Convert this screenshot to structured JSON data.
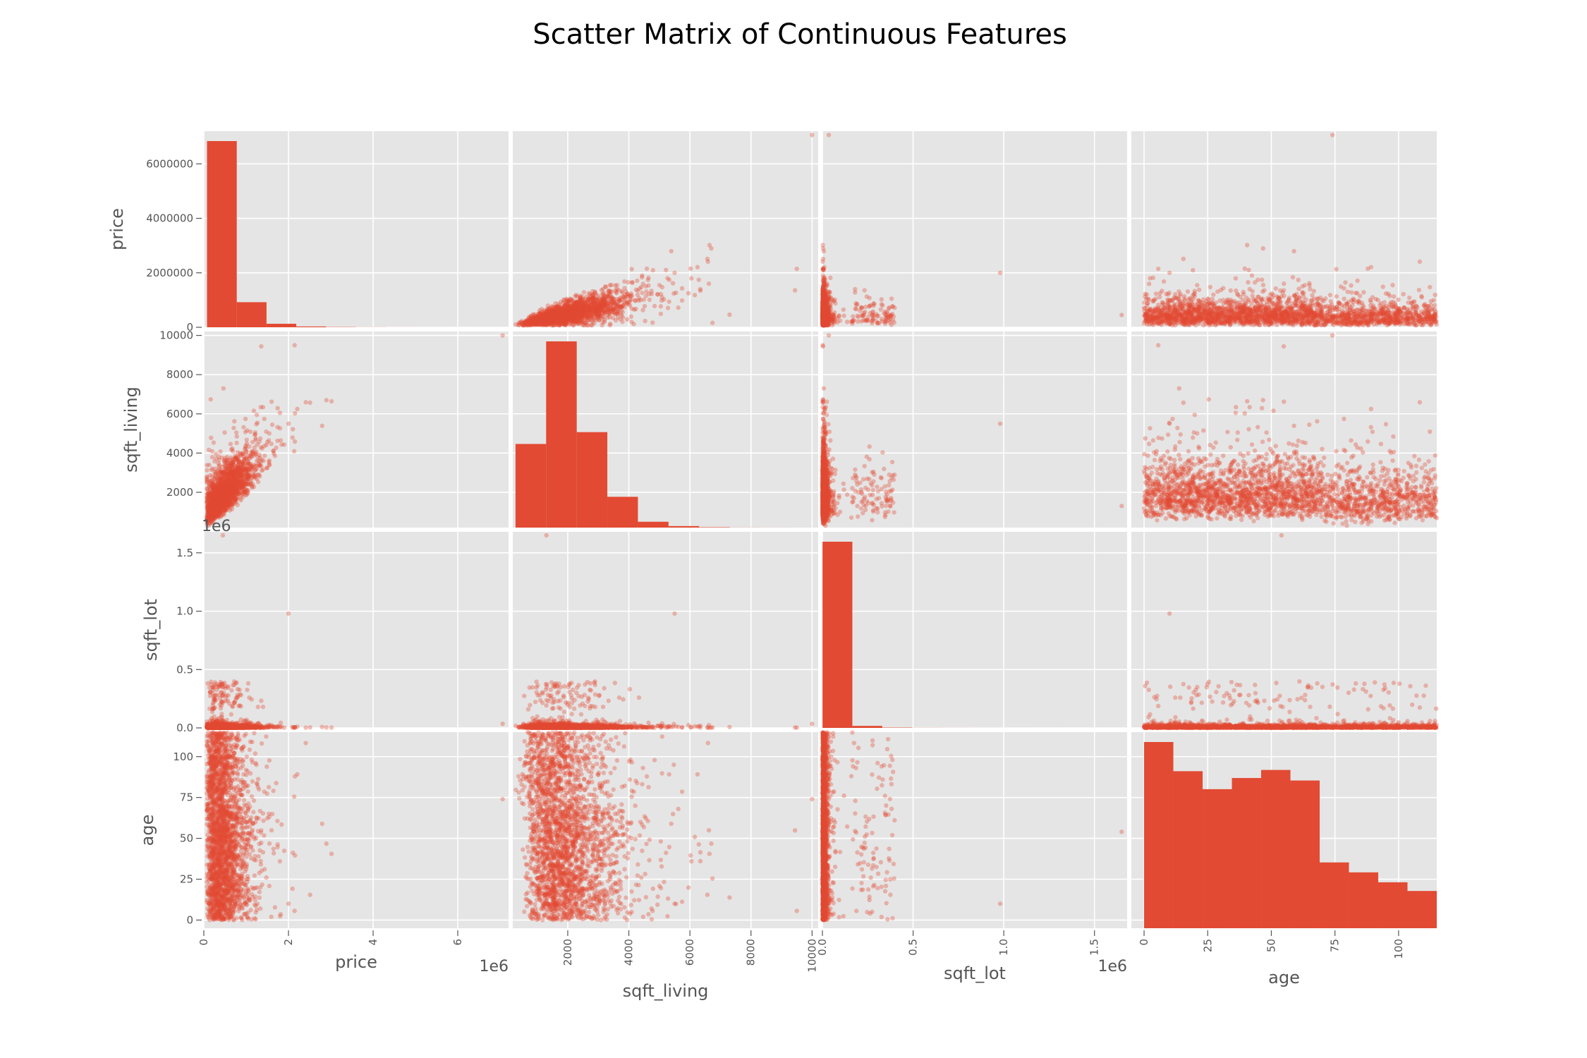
{
  "chart_data": {
    "type": "scatter",
    "title": "Scatter Matrix of Continuous Features",
    "variables": [
      "price",
      "sqft_living",
      "sqft_lot",
      "age"
    ],
    "colors": {
      "marks": "#e24a33",
      "panel_bg": "#e5e5e5",
      "grid": "#ffffff",
      "text": "#555555"
    },
    "grid": true,
    "axes": {
      "price": {
        "range": [
          0,
          7200000
        ],
        "ticks": [
          0,
          2000000,
          4000000,
          6000000
        ],
        "tick_labels": [
          "0",
          "2",
          "4",
          "6"
        ],
        "y_tick_labels": [
          "0",
          "2000000",
          "4000000",
          "6000000"
        ],
        "offset_label": "1e6"
      },
      "sqft_living": {
        "range": [
          200,
          10200
        ],
        "ticks": [
          2000,
          4000,
          6000,
          8000,
          10000
        ],
        "tick_labels": [
          "2000",
          "4000",
          "6000",
          "8000",
          "10000"
        ],
        "y_tick_labels": [
          "2000",
          "4000",
          "6000",
          "8000",
          "10000"
        ]
      },
      "sqft_lot": {
        "range": [
          0,
          1680000
        ],
        "ticks": [
          0,
          500000,
          1000000,
          1500000
        ],
        "tick_labels": [
          "0.0",
          "0.5",
          "1.0",
          "1.5"
        ],
        "offset_label": "1e6"
      },
      "age": {
        "range": [
          -5,
          115
        ],
        "ticks": [
          0,
          25,
          50,
          75,
          100
        ],
        "tick_labels": [
          "0",
          "25",
          "50",
          "75",
          "100"
        ]
      }
    },
    "histograms": {
      "price": {
        "bin_edges": [
          75000,
          778000,
          1481000,
          2184000,
          2887000,
          3590000,
          4293000,
          4996000,
          5699000,
          6402000,
          7105000
        ],
        "counts": [
          18550,
          2500,
          350,
          80,
          25,
          8,
          3,
          1,
          0,
          1
        ]
      },
      "sqft_living": {
        "bin_edges": [
          290,
          1292,
          2294,
          3296,
          4298,
          5300,
          6302,
          7304,
          8306,
          9308,
          10310
        ],
        "counts": [
          5300,
          11800,
          6050,
          1950,
          370,
          95,
          25,
          5,
          2,
          1
        ]
      },
      "sqft_lot": {
        "bin_edges": [
          520,
          165000,
          330000,
          495000,
          660000,
          825000,
          990000,
          1155000,
          1320000,
          1485000,
          1651359
        ],
        "counts": [
          21400,
          230,
          40,
          10,
          5,
          3,
          2,
          1,
          0,
          1
        ]
      },
      "age": {
        "bin_edges": [
          0,
          11.5,
          23,
          34.5,
          46,
          57.5,
          69,
          80.5,
          92,
          103.5,
          115
        ],
        "counts": [
          3000,
          2530,
          2240,
          2420,
          2550,
          2380,
          1060,
          900,
          740,
          600
        ]
      }
    },
    "scatter_points": 2400,
    "scatter_point_alpha": 0.35
  }
}
